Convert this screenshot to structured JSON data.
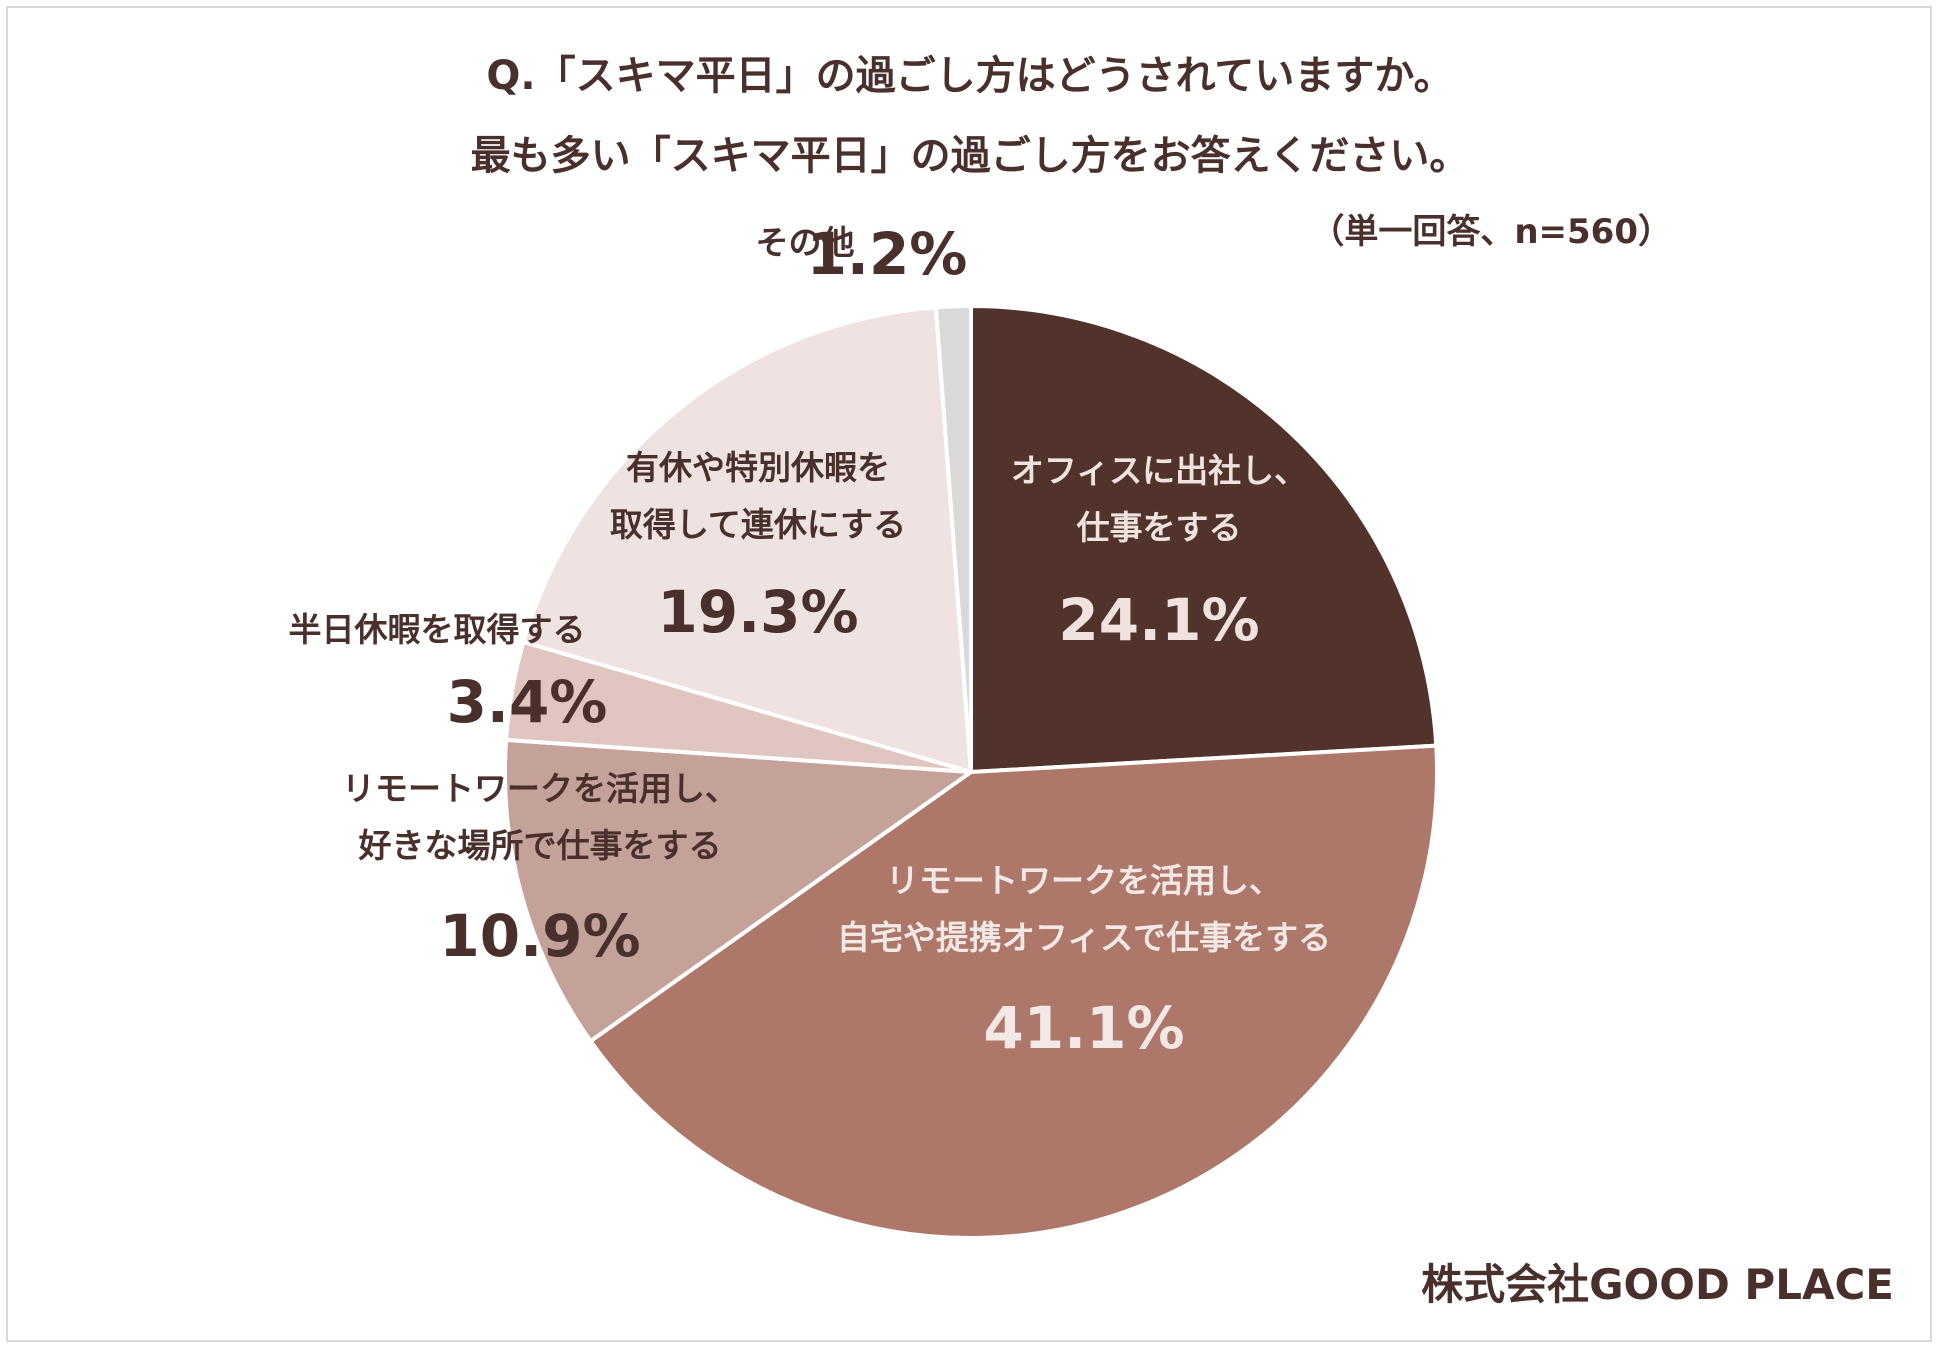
{
  "title_line1": "Q.「スキマ平日」の過ごし方はどうされていますか。",
  "title_line2": "最も多い「スキマ平日」の過ごし方をお答えください。",
  "sample_note": "（単一回答、n=560）",
  "company": "株式会社GOOD PLACE",
  "chart_data": {
    "type": "pie",
    "title": "Q.「スキマ平日」の過ごし方はどうされていますか。最も多い「スキマ平日」の過ごし方をお答えください。",
    "start_angle_deg": 0,
    "direction": "clockwise",
    "slices": [
      {
        "label": [
          "オフィスに出社し、",
          "仕事をする"
        ],
        "value": 24.1,
        "value_label": "24.1%",
        "color": "#51332c",
        "label_color": "#efe2df",
        "pct_color": "#efe2df"
      },
      {
        "label": [
          "リモートワークを活用し、",
          "自宅や提携オフィスで仕事をする"
        ],
        "value": 41.1,
        "value_label": "41.1%",
        "color": "#ad7869",
        "label_color": "#f3e8e5",
        "pct_color": "#f3e8e5"
      },
      {
        "label": [
          "リモートワークを活用し、",
          "好きな場所で仕事をする"
        ],
        "value": 10.9,
        "value_label": "10.9%",
        "color": "#c4a299",
        "label_color": "#4a302c",
        "pct_color": "#4a302c"
      },
      {
        "label": [
          "半日休暇を取得する"
        ],
        "value": 3.4,
        "value_label": "3.4%",
        "color": "#dfc6c0",
        "label_color": "#4a302c",
        "pct_color": "#4a302c"
      },
      {
        "label": [
          "有休や特別休暇を",
          "取得して連休にする"
        ],
        "value": 19.3,
        "value_label": "19.3%",
        "color": "#efe3e1",
        "label_color": "#4a302c",
        "pct_color": "#4a302c"
      },
      {
        "label": [
          "その他"
        ],
        "value": 1.2,
        "value_label": "1.2%",
        "color": "#d9d9d9",
        "label_color": "#4a302c",
        "pct_color": "#4a302c"
      }
    ]
  }
}
